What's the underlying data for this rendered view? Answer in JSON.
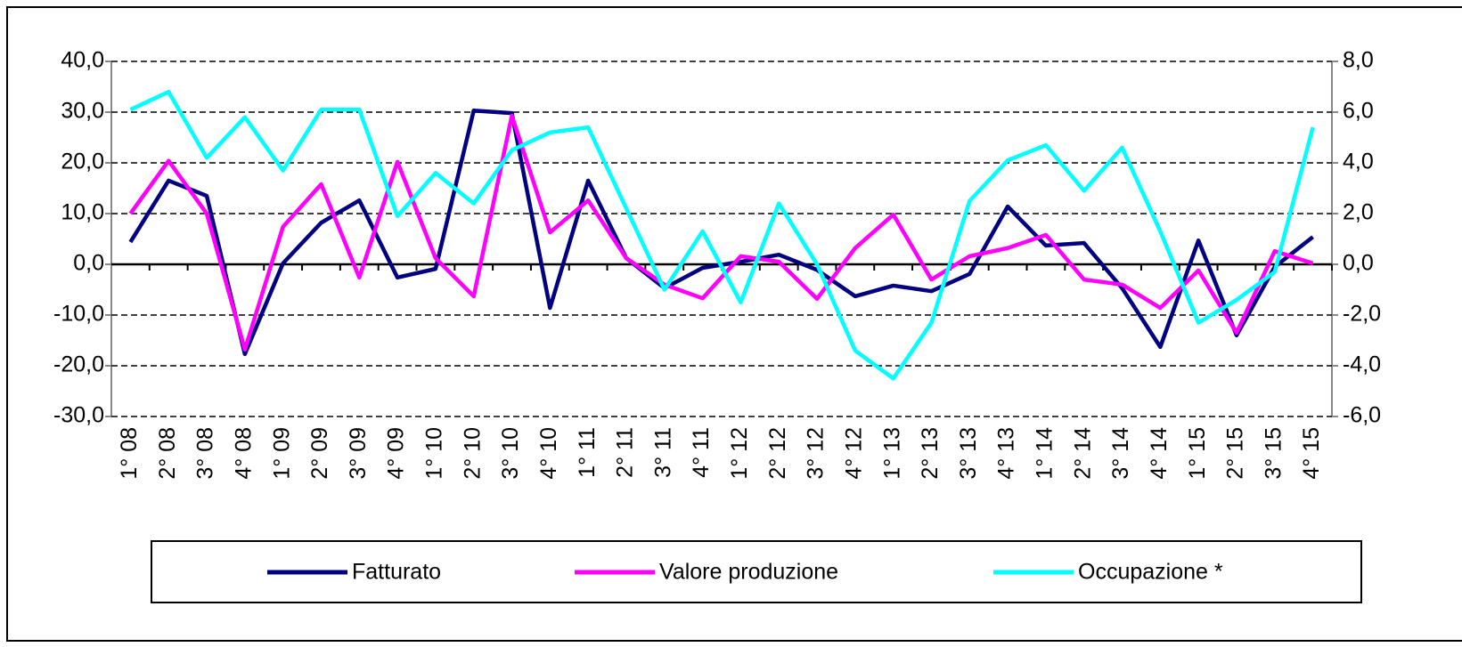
{
  "chart_data": {
    "type": "line",
    "categories": [
      "1° 08",
      "2° 08",
      "3° 08",
      "4° 08",
      "1° 09",
      "2° 09",
      "3° 09",
      "4° 09",
      "1° 10",
      "2° 10",
      "3° 10",
      "4° 10",
      "1° 11",
      "2° 11",
      "3° 11",
      "4° 11",
      "1° 12",
      "2° 12",
      "3° 12",
      "4° 12",
      "1° 13",
      "2° 13",
      "3° 13",
      "4° 13",
      "1° 14",
      "2° 14",
      "3° 14",
      "4° 14",
      "1° 15",
      "2° 15",
      "3° 15",
      "4° 15"
    ],
    "series": [
      {
        "name": "Fatturato",
        "color": "#000080",
        "values": [
          4.4,
          16.5,
          13.5,
          -17.7,
          0.2,
          8.2,
          12.6,
          -2.6,
          -0.9,
          30.3,
          29.8,
          -8.6,
          16.5,
          1.2,
          -4.7,
          -0.7,
          0.5,
          1.9,
          -1.1,
          -6.3,
          -4.2,
          -5.3,
          -1.9,
          11.4,
          3.7,
          4.2,
          -4.7,
          -16.3,
          4.7,
          -14.0,
          -0.5,
          5.4
        ]
      },
      {
        "name": "Valore produzione",
        "color": "#ff00ff",
        "values": [
          10.0,
          20.4,
          10.0,
          -16.8,
          7.4,
          15.8,
          -2.6,
          20.2,
          1.2,
          -6.3,
          29.3,
          6.3,
          12.6,
          1.2,
          -4.0,
          -6.7,
          1.6,
          0.5,
          -6.8,
          3.2,
          9.8,
          -3.0,
          1.6,
          3.2,
          5.8,
          -3.0,
          -4.0,
          -8.6,
          -1.2,
          -13.5,
          2.6,
          0.2
        ]
      },
      {
        "name": "Occupazione *",
        "color": "#00ffff",
        "axis": "y2",
        "values": [
          6.1,
          6.8,
          4.2,
          5.8,
          3.7,
          6.1,
          6.1,
          1.9,
          3.6,
          2.4,
          4.5,
          5.2,
          5.4,
          2.2,
          -1.0,
          1.3,
          -1.5,
          2.4,
          0.0,
          -3.4,
          -4.5,
          -2.3,
          2.5,
          4.1,
          4.7,
          2.9,
          4.6,
          1.3,
          -2.3,
          -1.4,
          -0.3,
          5.4
        ]
      }
    ],
    "ylim": [
      -30,
      40
    ],
    "yticks": [
      {
        "value": -30,
        "label": "-30,0"
      },
      {
        "value": -20,
        "label": "-20,0"
      },
      {
        "value": -10,
        "label": "-10,0"
      },
      {
        "value": 0,
        "label": "0,0"
      },
      {
        "value": 10,
        "label": "10,0"
      },
      {
        "value": 20,
        "label": "20,0"
      },
      {
        "value": 30,
        "label": "30,0"
      },
      {
        "value": 40,
        "label": "40,0"
      }
    ],
    "y2lim": [
      -6,
      8
    ],
    "y2ticks": [
      {
        "value": -6,
        "label": "-6,0"
      },
      {
        "value": -4,
        "label": "-4,0"
      },
      {
        "value": -2,
        "label": "-2,0"
      },
      {
        "value": 0,
        "label": "0,0"
      },
      {
        "value": 2,
        "label": "2,0"
      },
      {
        "value": 4,
        "label": "4,0"
      },
      {
        "value": 6,
        "label": "6,0"
      },
      {
        "value": 8,
        "label": "8,0"
      }
    ],
    "grid": true
  }
}
